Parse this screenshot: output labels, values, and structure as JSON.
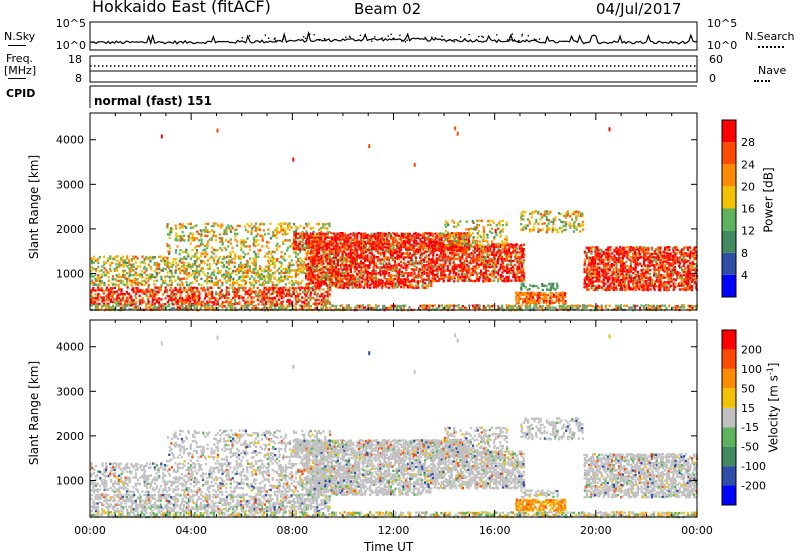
{
  "header": {
    "station": "Hokkaido East (fitACF)",
    "beam": "Beam 02",
    "date": "04/Jul/2017"
  },
  "left_labels": {
    "nsky": "N.Sky",
    "freq_line1": "Freq.",
    "freq_line2": "[MHz]",
    "cpid": "CPID"
  },
  "right_labels": {
    "nsearch": "N.Search",
    "nave": "Nave"
  },
  "noise_panel": {
    "ticks_left": [
      "10^5",
      "10^0"
    ],
    "ticks_right": [
      "10^5",
      "10^0"
    ]
  },
  "freq_panel": {
    "ticks_left": [
      "18",
      "8"
    ],
    "ticks_right": [
      "60",
      "0"
    ]
  },
  "cpid_text": "normal (fast) 151",
  "colors": {
    "power": [
      "#0000ff",
      "#2e4ea8",
      "#3f8a5f",
      "#5cb35c",
      "#f2c100",
      "#ff8c00",
      "#ff4a00",
      "#ff0000"
    ],
    "velocity": [
      "#0000ff",
      "#2e4ea8",
      "#3f8a5f",
      "#5cb35c",
      "#c0c0c0",
      "#f2c100",
      "#ff8c00",
      "#ff4a00",
      "#ff0000"
    ],
    "ground": "#808080"
  },
  "chart_data": [
    {
      "type": "heatmap",
      "name": "power",
      "ylabel": "Slant Range [km]",
      "colorbar_label": "Power [dB]",
      "colorbar_ticks": [
        "28",
        "24",
        "20",
        "16",
        "12",
        "8",
        "4"
      ],
      "x": [
        "00:00",
        "04:00",
        "08:00",
        "12:00",
        "16:00",
        "20:00",
        "00:00"
      ],
      "y_ticks": [
        "4000",
        "3000",
        "2000",
        "1000"
      ],
      "ylim": [
        180,
        4600
      ],
      "xlim_hours": [
        0,
        24
      ],
      "clim": [
        0,
        30
      ]
    },
    {
      "type": "heatmap",
      "name": "velocity",
      "ylabel": "Slant Range [km]",
      "colorbar_label": "Velocity [m s^-1]",
      "colorbar_ticks": [
        "200",
        "100",
        "50",
        "15",
        "-15",
        "-50",
        "-100",
        "-200"
      ],
      "x": [
        "00:00",
        "04:00",
        "08:00",
        "12:00",
        "16:00",
        "20:00",
        "00:00"
      ],
      "y_ticks": [
        "4000",
        "3000",
        "2000",
        "1000"
      ],
      "ylim": [
        180,
        4600
      ],
      "xlim_hours": [
        0,
        24
      ],
      "clim": [
        -250,
        250
      ]
    }
  ],
  "xlabel": "Time UT"
}
